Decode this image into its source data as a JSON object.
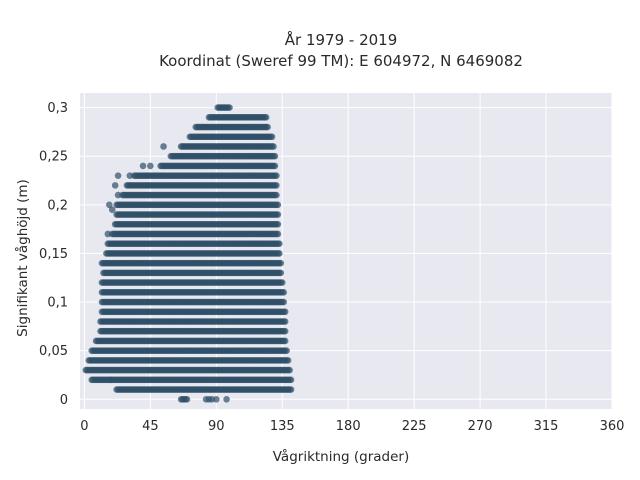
{
  "chart_data": {
    "type": "scatter",
    "title_lines": [
      "År 1979 - 2019",
      "Koordinat (Sweref 99 TM): E 604972, N 6469082"
    ],
    "xlabel": "Vågriktning (grader)",
    "ylabel": "Signifikant våghöjd (m)",
    "xlim": [
      -3,
      360
    ],
    "ylim": [
      -0.01,
      0.315
    ],
    "xticks": [
      0,
      45,
      90,
      135,
      180,
      225,
      270,
      315,
      360
    ],
    "xtick_labels": [
      "0",
      "45",
      "90",
      "135",
      "180",
      "225",
      "270",
      "315",
      "360"
    ],
    "yticks": [
      0,
      0.05,
      0.1,
      0.15,
      0.2,
      0.25,
      0.3
    ],
    "ytick_labels": [
      "0",
      "0,05",
      "0,1",
      "0,15",
      "0,2",
      "0,25",
      "0,3"
    ],
    "grid": true,
    "background": "#e8e8f0",
    "marker_color": "#2f5068",
    "y_step": 0.01,
    "dense_bands": [
      {
        "y": 0.0,
        "x": [
          66,
          70
        ],
        "extra_x": [
          83,
          85,
          87,
          90,
          97
        ]
      },
      {
        "y": 0.01,
        "x": [
          22,
          141
        ]
      },
      {
        "y": 0.02,
        "x": [
          5,
          141
        ]
      },
      {
        "y": 0.03,
        "x": [
          1,
          140
        ]
      },
      {
        "y": 0.04,
        "x": [
          3,
          139
        ]
      },
      {
        "y": 0.05,
        "x": [
          5,
          138
        ]
      },
      {
        "y": 0.06,
        "x": [
          8,
          137
        ]
      },
      {
        "y": 0.07,
        "x": [
          11,
          137
        ]
      },
      {
        "y": 0.08,
        "x": [
          11,
          137
        ]
      },
      {
        "y": 0.09,
        "x": [
          12,
          137
        ]
      },
      {
        "y": 0.1,
        "x": [
          12,
          136
        ]
      },
      {
        "y": 0.11,
        "x": [
          12,
          136
        ]
      },
      {
        "y": 0.12,
        "x": [
          12,
          135
        ]
      },
      {
        "y": 0.13,
        "x": [
          13,
          134
        ]
      },
      {
        "y": 0.14,
        "x": [
          12,
          134
        ]
      },
      {
        "y": 0.15,
        "x": [
          15,
          133
        ]
      },
      {
        "y": 0.16,
        "x": [
          16,
          133
        ]
      },
      {
        "y": 0.17,
        "x": [
          19,
          132
        ]
      },
      {
        "y": 0.18,
        "x": [
          21,
          132
        ]
      },
      {
        "y": 0.19,
        "x": [
          22,
          132
        ]
      },
      {
        "y": 0.2,
        "x": [
          22,
          132
        ]
      },
      {
        "y": 0.21,
        "x": [
          26,
          131
        ]
      },
      {
        "y": 0.22,
        "x": [
          29,
          131
        ]
      },
      {
        "y": 0.23,
        "x": [
          34,
          131
        ]
      },
      {
        "y": 0.24,
        "x": [
          52,
          130
        ]
      },
      {
        "y": 0.25,
        "x": [
          60,
          130
        ]
      },
      {
        "y": 0.26,
        "x": [
          66,
          129
        ]
      },
      {
        "y": 0.27,
        "x": [
          72,
          128
        ]
      },
      {
        "y": 0.28,
        "x": [
          76,
          125
        ]
      },
      {
        "y": 0.29,
        "x": [
          85,
          124
        ]
      },
      {
        "y": 0.3,
        "x": [
          91,
          99
        ]
      }
    ],
    "outliers": [
      {
        "x": 18,
        "y": 0.02
      },
      {
        "x": 16,
        "y": 0.17
      },
      {
        "x": 19,
        "y": 0.195
      },
      {
        "x": 17,
        "y": 0.2
      },
      {
        "x": 23,
        "y": 0.21
      },
      {
        "x": 21,
        "y": 0.22
      },
      {
        "x": 23,
        "y": 0.23
      },
      {
        "x": 40,
        "y": 0.24
      },
      {
        "x": 45,
        "y": 0.24
      },
      {
        "x": 54,
        "y": 0.26
      },
      {
        "x": 59,
        "y": 0.25
      },
      {
        "x": 31,
        "y": 0.23
      }
    ]
  }
}
